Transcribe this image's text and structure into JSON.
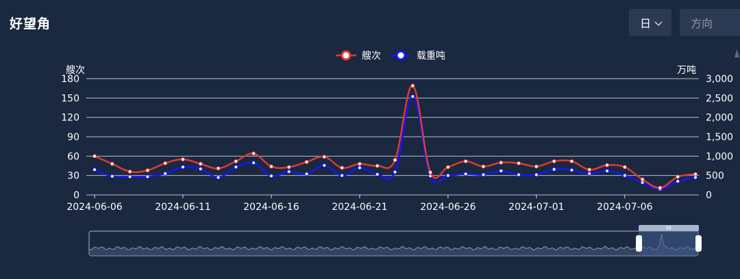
{
  "header": {
    "title": "好望角",
    "period_select": "日",
    "direction_placeholder": "方向"
  },
  "colors": {
    "background": "#1a2840",
    "series_count": "#e03a30",
    "series_tonnage": "#1515ff",
    "grid": "#d8dde6"
  },
  "chart_data": {
    "type": "line",
    "legend": [
      "艘次",
      "载重吨"
    ],
    "legend_position": "top-center",
    "y_left": {
      "unit": "艘次",
      "min": 0,
      "max": 180,
      "ticks": [
        0,
        30,
        60,
        90,
        120,
        150,
        180
      ],
      "tick_labels": [
        "0",
        "30",
        "60",
        "90",
        "120",
        "150",
        "180"
      ]
    },
    "y_right": {
      "unit": "万吨",
      "min": 0,
      "max": 3000,
      "ticks": [
        0,
        500,
        1000,
        1500,
        2000,
        2500,
        3000
      ],
      "tick_labels": [
        "0",
        "500",
        "1,000",
        "1,500",
        "2,000",
        "2,500",
        "3,000"
      ]
    },
    "x": [
      "2024-06-06",
      "2024-06-07",
      "2024-06-08",
      "2024-06-09",
      "2024-06-10",
      "2024-06-11",
      "2024-06-12",
      "2024-06-13",
      "2024-06-14",
      "2024-06-15",
      "2024-06-16",
      "2024-06-17",
      "2024-06-18",
      "2024-06-19",
      "2024-06-20",
      "2024-06-21",
      "2024-06-22",
      "2024-06-23",
      "2024-06-24",
      "2024-06-25",
      "2024-06-26",
      "2024-06-27",
      "2024-06-28",
      "2024-06-29",
      "2024-06-30",
      "2024-07-01",
      "2024-07-02",
      "2024-07-03",
      "2024-07-04",
      "2024-07-05",
      "2024-07-06",
      "2024-07-07",
      "2024-07-08",
      "2024-07-09",
      "2024-07-10"
    ],
    "x_tick_labels": [
      "2024-06-06",
      "2024-06-11",
      "2024-06-16",
      "2024-06-21",
      "2024-06-26",
      "2024-07-01",
      "2024-07-06"
    ],
    "series": [
      {
        "name": "艘次",
        "axis": "left",
        "values": [
          60,
          48,
          36,
          38,
          49,
          55,
          48,
          41,
          52,
          64,
          44,
          43,
          51,
          59,
          42,
          48,
          45,
          54,
          169,
          35,
          43,
          52,
          44,
          50,
          49,
          44,
          52,
          52,
          39,
          46,
          43,
          24,
          11,
          28,
          32
        ]
      },
      {
        "name": "载重吨",
        "axis": "left_scaled",
        "values_wan_ton": [
          650,
          480,
          470,
          470,
          550,
          720,
          670,
          450,
          720,
          830,
          490,
          600,
          540,
          760,
          500,
          700,
          530,
          590,
          2540,
          490,
          500,
          540,
          520,
          620,
          520,
          520,
          660,
          640,
          550,
          620,
          500,
          320,
          150,
          350,
          450
        ]
      }
    ],
    "grid": true
  }
}
